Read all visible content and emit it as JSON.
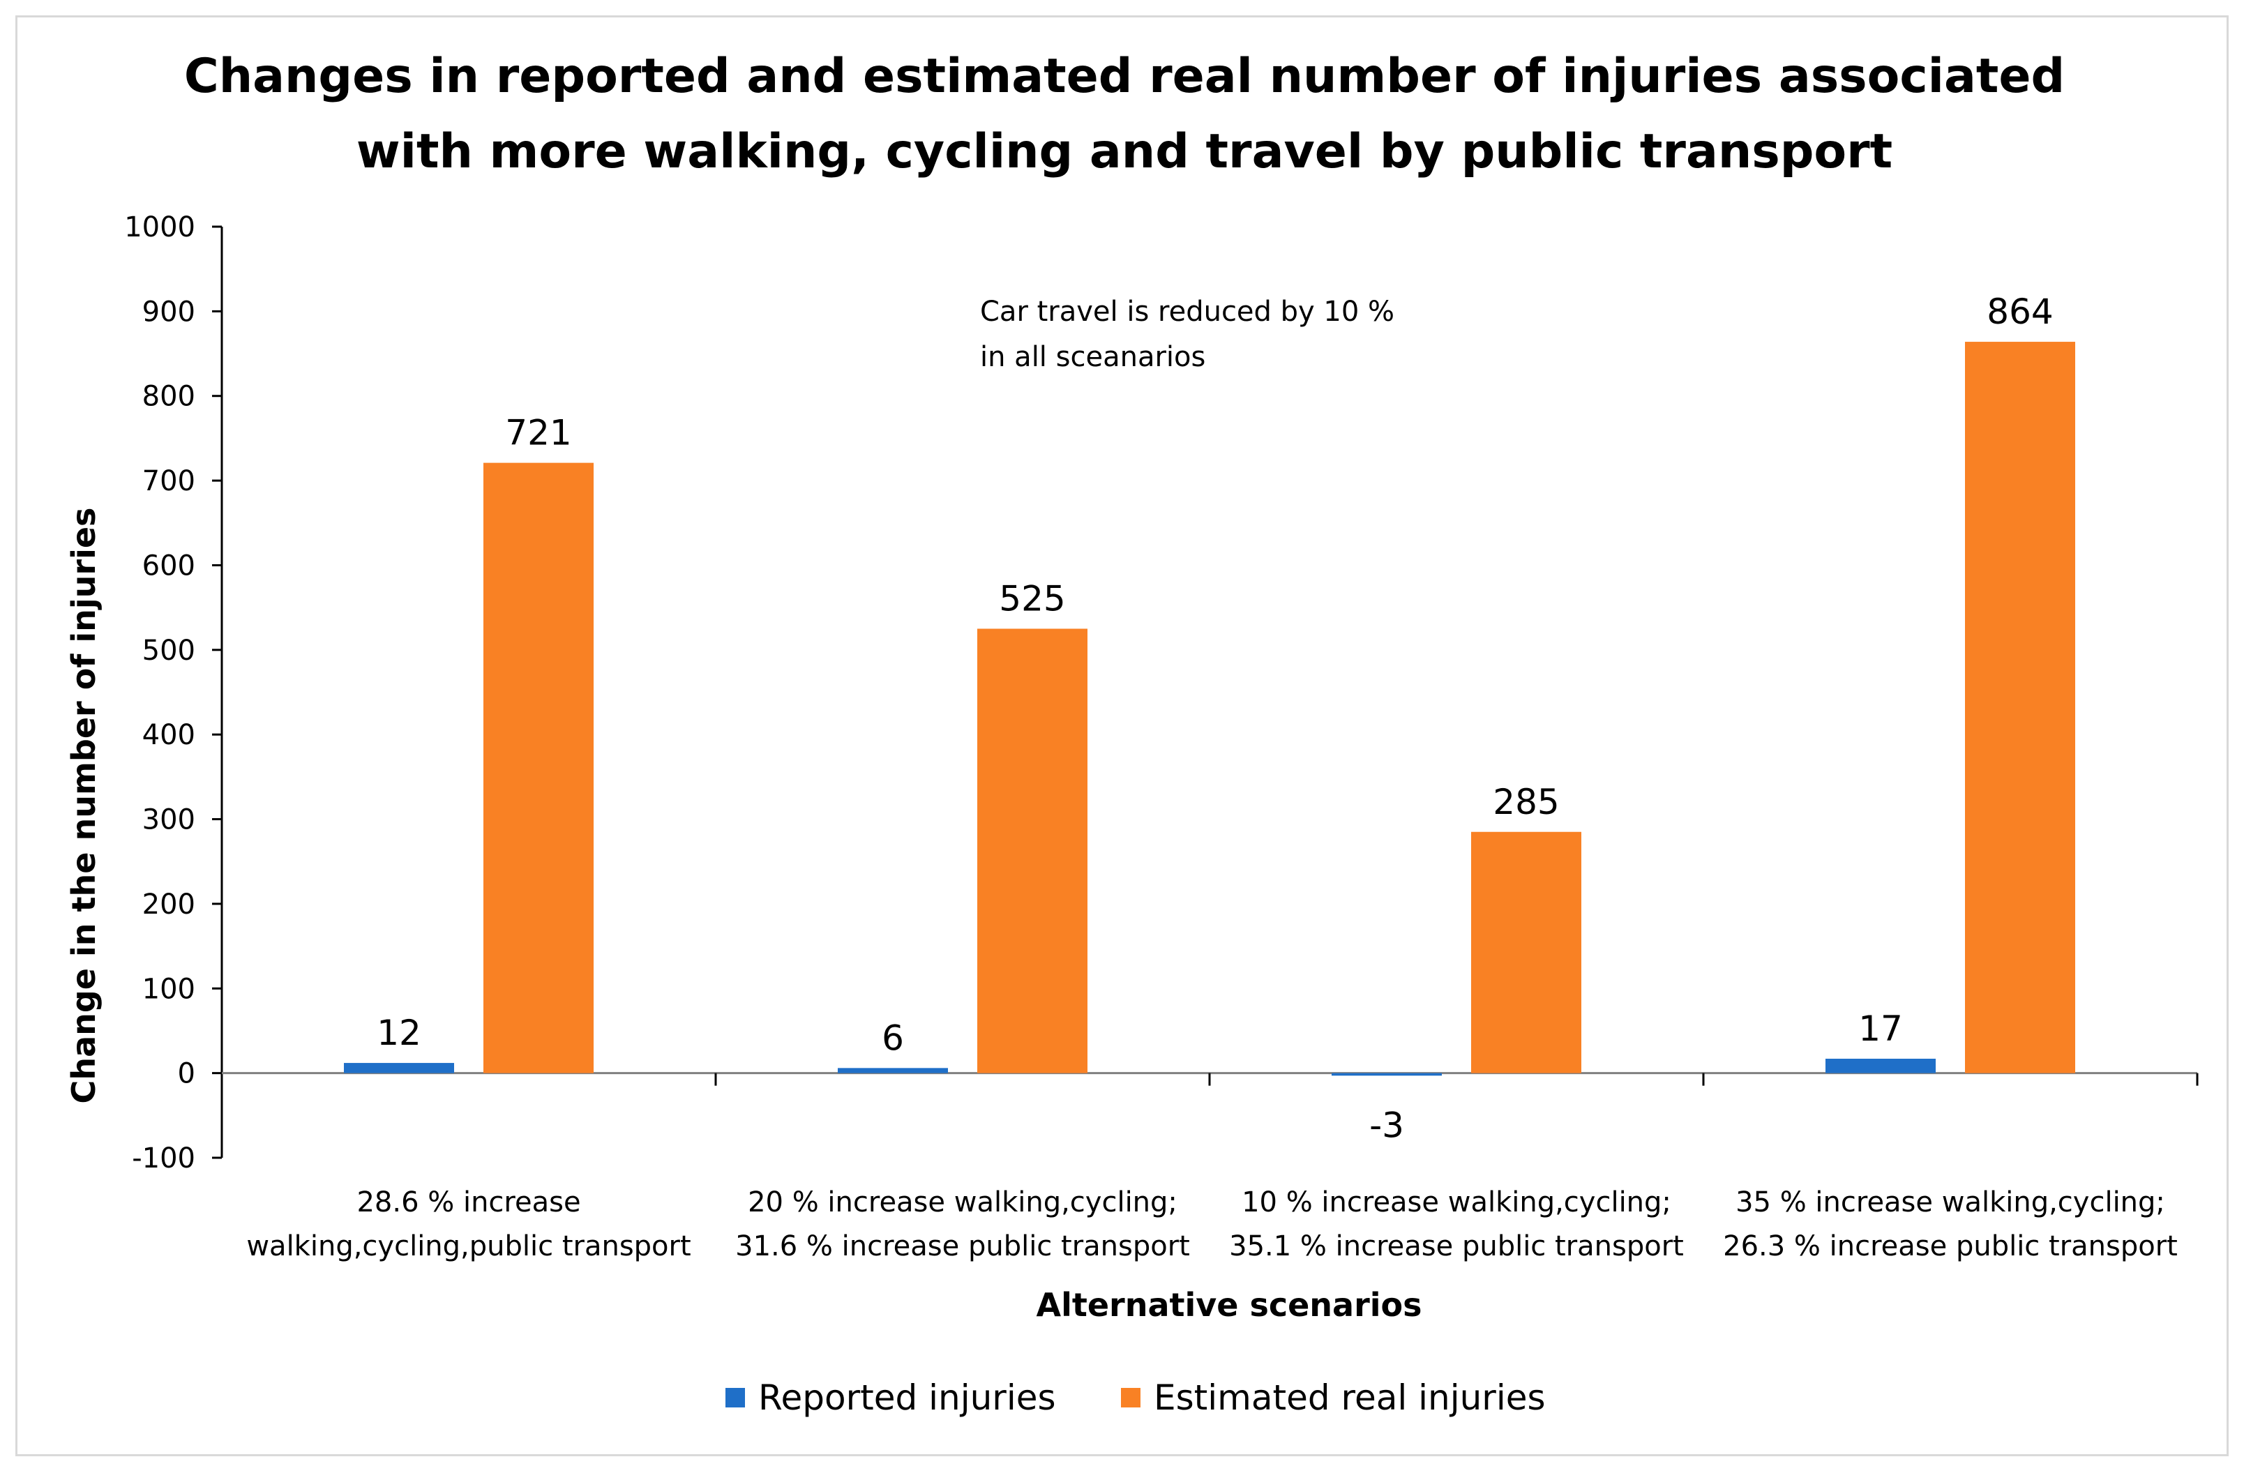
{
  "chart_data": {
    "type": "bar",
    "title": [
      "Changes in reported and estimated real number of injuries associated",
      "with more walking, cycling and travel by public transport"
    ],
    "xlabel": "Alternative scenarios",
    "ylabel": "Change in the number of injuries",
    "ylim": [
      -100,
      1000
    ],
    "yticks": [
      1000,
      900,
      800,
      700,
      600,
      500,
      400,
      300,
      200,
      100,
      0,
      -100
    ],
    "categories": [
      [
        "28.6 % increase",
        "walking,cycling,public transport"
      ],
      [
        "20 % increase walking,cycling;",
        "31.6 % increase public transport"
      ],
      [
        "10 % increase walking,cycling;",
        "35.1 % increase public transport"
      ],
      [
        "35 % increase walking,cycling;",
        "26.3 % increase public transport"
      ]
    ],
    "series": [
      {
        "name": "Reported injuries",
        "color": "#1f6fc8",
        "values": [
          12,
          6,
          -3,
          17
        ]
      },
      {
        "name": "Estimated real injuries",
        "color": "#f98124",
        "values": [
          721,
          525,
          285,
          864
        ]
      }
    ],
    "annotation": [
      "Car travel is reduced by 10 %",
      "in all sceanarios"
    ],
    "legend_position": "bottom",
    "grid": false
  }
}
